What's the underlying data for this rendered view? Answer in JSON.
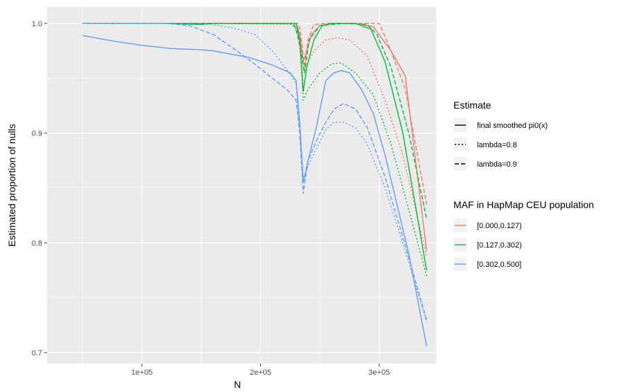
{
  "chart_data": {
    "type": "line",
    "xlabel": "N",
    "ylabel": "Estimated proportion of nulls",
    "xlim": [
      20000,
      348000
    ],
    "ylim": [
      0.69,
      1.015
    ],
    "x_ticks": [
      {
        "value": 100000,
        "label": "1e+05"
      },
      {
        "value": 200000,
        "label": "2e+05"
      },
      {
        "value": 300000,
        "label": "3e+05"
      }
    ],
    "y_ticks": [
      {
        "value": 0.7,
        "label": "0.7"
      },
      {
        "value": 0.8,
        "label": "0.8"
      },
      {
        "value": 0.9,
        "label": "0.9"
      },
      {
        "value": 1.0,
        "label": "1.0"
      }
    ],
    "grid": true,
    "legend_placement": "right",
    "legends": {
      "estimate": {
        "title": "Estimate",
        "entries": [
          {
            "label": "final smoothed pi0(x)",
            "dash": "solid"
          },
          {
            "label": "lambda=0.8",
            "dash": "dotted"
          },
          {
            "label": "lambda=0.9",
            "dash": "dashed"
          }
        ]
      },
      "maf": {
        "title": "MAF in HapMap CEU population",
        "entries": [
          {
            "label": "[0.000,0.127)",
            "color": "#F8766D"
          },
          {
            "label": "[0.127,0.302)",
            "color": "#00BA38"
          },
          {
            "label": "[0.302,0.500]",
            "color": "#619CFF"
          }
        ]
      }
    },
    "series": [
      {
        "group": "[0.000,0.127)",
        "estimate": "final smoothed pi0(x)",
        "color": "#F8766D",
        "dash": "solid",
        "x": [
          50000,
          150000,
          230000,
          233000,
          236000,
          239000,
          243000,
          250000,
          260000,
          280000,
          295000,
          310000,
          322000,
          340000
        ],
        "y": [
          1.0,
          1.0,
          1.0,
          0.99,
          0.965,
          0.975,
          0.99,
          0.998,
          1.0,
          1.0,
          0.997,
          0.975,
          0.952,
          0.793
        ]
      },
      {
        "group": "[0.000,0.127)",
        "estimate": "lambda=0.8",
        "color": "#F8766D",
        "dash": "dotted",
        "x": [
          50000,
          150000,
          228000,
          232000,
          235000,
          238000,
          245000,
          255000,
          265000,
          275000,
          290000,
          305000,
          320000,
          340000
        ],
        "y": [
          1.0,
          1.0,
          0.999,
          0.99,
          0.955,
          0.96,
          0.975,
          0.985,
          0.987,
          0.985,
          0.97,
          0.93,
          0.88,
          0.788
        ]
      },
      {
        "group": "[0.000,0.127)",
        "estimate": "lambda=0.9",
        "color": "#F8766D",
        "dash": "dashed",
        "x": [
          50000,
          150000,
          232000,
          234000,
          237000,
          240000,
          245000,
          255000,
          270000,
          290000,
          300000,
          310000,
          322000,
          340000
        ],
        "y": [
          1.0,
          1.0,
          1.0,
          0.99,
          0.96,
          0.985,
          0.999,
          1.0,
          1.0,
          1.0,
          1.0,
          0.975,
          0.94,
          0.835
        ]
      },
      {
        "group": "[0.127,0.302)",
        "estimate": "final smoothed pi0(x)",
        "color": "#00BA38",
        "dash": "solid",
        "x": [
          50000,
          120000,
          150000,
          160000,
          230000,
          233000,
          236000,
          239000,
          245000,
          252000,
          260000,
          280000,
          293000,
          305000,
          320000,
          340000
        ],
        "y": [
          1.0,
          1.0,
          0.999,
          1.0,
          1.0,
          0.985,
          0.938,
          0.96,
          0.985,
          0.998,
          1.0,
          1.0,
          0.995,
          0.965,
          0.9,
          0.775
        ]
      },
      {
        "group": "[0.127,0.302)",
        "estimate": "lambda=0.8",
        "color": "#00BA38",
        "dash": "dotted",
        "x": [
          50000,
          150000,
          225000,
          230000,
          233000,
          236000,
          240000,
          250000,
          260000,
          268000,
          280000,
          295000,
          310000,
          325000,
          340000
        ],
        "y": [
          1.0,
          1.0,
          1.0,
          0.995,
          0.985,
          0.93,
          0.94,
          0.955,
          0.963,
          0.964,
          0.955,
          0.935,
          0.89,
          0.83,
          0.77
        ]
      },
      {
        "group": "[0.127,0.302)",
        "estimate": "lambda=0.9",
        "color": "#00BA38",
        "dash": "dashed",
        "x": [
          50000,
          150000,
          228000,
          231000,
          234000,
          237000,
          241000,
          250000,
          270000,
          290000,
          298000,
          310000,
          325000,
          340000
        ],
        "y": [
          1.0,
          1.0,
          1.0,
          0.99,
          0.975,
          0.955,
          0.985,
          0.998,
          1.0,
          0.999,
          0.99,
          0.96,
          0.9,
          0.822
        ]
      },
      {
        "group": "[0.302,0.500]",
        "estimate": "final smoothed pi0(x)",
        "color": "#619CFF",
        "dash": "solid",
        "x": [
          50000,
          75000,
          100000,
          125000,
          150000,
          160000,
          175000,
          190000,
          210000,
          225000,
          230000,
          233000,
          236000,
          240000,
          247000,
          255000,
          262000,
          268000,
          275000,
          285000,
          295000,
          305000,
          315000,
          325000,
          340000
        ],
        "y": [
          0.989,
          0.984,
          0.98,
          0.977,
          0.976,
          0.975,
          0.972,
          0.969,
          0.962,
          0.955,
          0.948,
          0.91,
          0.855,
          0.875,
          0.905,
          0.948,
          0.955,
          0.957,
          0.955,
          0.94,
          0.918,
          0.88,
          0.835,
          0.79,
          0.706
        ]
      },
      {
        "group": "[0.302,0.500]",
        "estimate": "lambda=0.8",
        "color": "#619CFF",
        "dash": "dotted",
        "x": [
          50000,
          140000,
          160000,
          180000,
          195000,
          210000,
          222000,
          230000,
          233000,
          236000,
          240000,
          248000,
          255000,
          262000,
          270000,
          280000,
          290000,
          305000,
          320000,
          340000
        ],
        "y": [
          1.0,
          1.0,
          0.999,
          0.995,
          0.99,
          0.975,
          0.958,
          0.945,
          0.9,
          0.858,
          0.87,
          0.888,
          0.903,
          0.91,
          0.91,
          0.905,
          0.89,
          0.85,
          0.8,
          0.728
        ]
      },
      {
        "group": "[0.302,0.500]",
        "estimate": "lambda=0.9",
        "color": "#619CFF",
        "dash": "dashed",
        "x": [
          50000,
          120000,
          140000,
          160000,
          180000,
          195000,
          210000,
          222000,
          230000,
          233000,
          236000,
          240000,
          248000,
          255000,
          262000,
          270000,
          280000,
          290000,
          305000,
          320000,
          340000
        ],
        "y": [
          1.0,
          1.0,
          0.998,
          0.99,
          0.975,
          0.963,
          0.95,
          0.94,
          0.93,
          0.9,
          0.845,
          0.875,
          0.895,
          0.91,
          0.922,
          0.927,
          0.922,
          0.905,
          0.86,
          0.805,
          0.73
        ]
      }
    ]
  }
}
